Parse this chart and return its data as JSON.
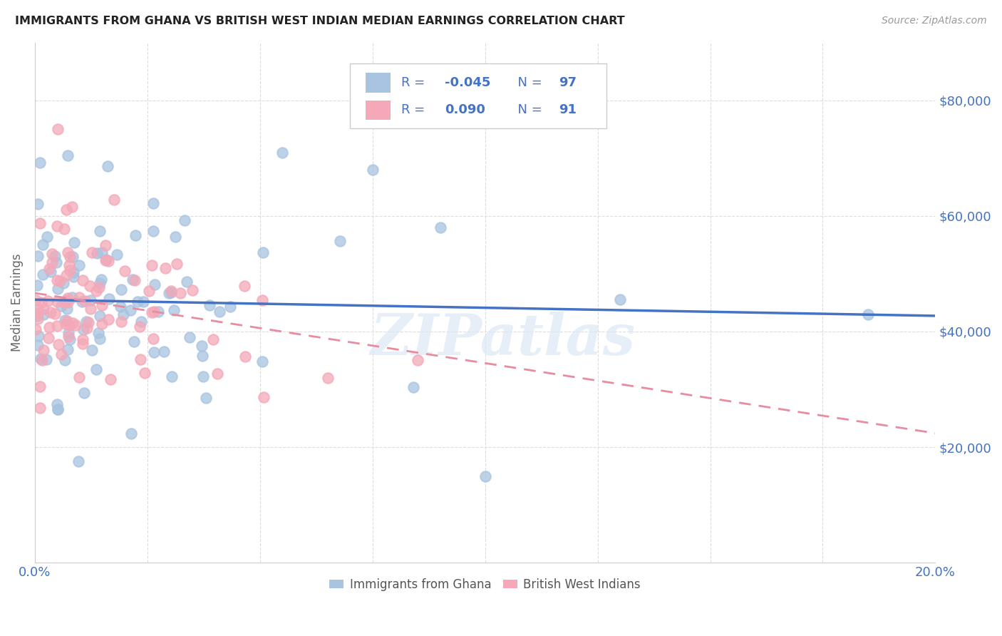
{
  "title": "IMMIGRANTS FROM GHANA VS BRITISH WEST INDIAN MEDIAN EARNINGS CORRELATION CHART",
  "source": "Source: ZipAtlas.com",
  "legend_label1": "Immigrants from Ghana",
  "legend_label2": "British West Indians",
  "legend_R1": "-0.045",
  "legend_N1": "97",
  "legend_R2": "0.090",
  "legend_N2": "91",
  "color_ghana": "#a8c4e0",
  "color_bwi": "#f4a8b8",
  "color_ghana_line": "#4472c4",
  "color_bwi_line": "#e88ca0",
  "color_axis_text": "#4472c4",
  "watermark": "ZIPatlas",
  "background_color": "#ffffff",
  "xlim": [
    0.0,
    0.2
  ],
  "ylim": [
    0,
    90000
  ],
  "yticks": [
    20000,
    40000,
    60000,
    80000
  ],
  "ytick_labels": [
    "$20,000",
    "$40,000",
    "$60,000",
    "$80,000"
  ],
  "ylabel": "Median Earnings",
  "seed": 7
}
